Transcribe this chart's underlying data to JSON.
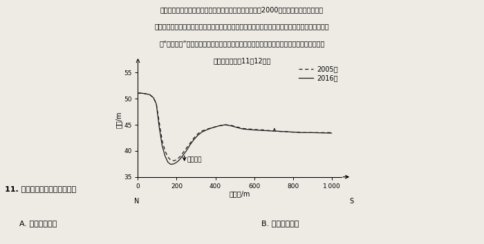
{
  "question11": "11. 图示剖面所在河段最有可能",
  "optionA": "A. 地处弯道顶端",
  "optionB": "B. 两岁岩性坚硬",
  "xlabel": "起点距/m",
  "ylabel": "高程/m",
  "legend_2005": "2005年",
  "legend_2016": "2016年",
  "annotation": "垂向冲深",
  "xlim": [
    0,
    1050
  ],
  "ylim": [
    35,
    57
  ],
  "xticks": [
    0,
    200,
    400,
    600,
    800,
    1000
  ],
  "yticks": [
    35,
    40,
    45,
    50,
    55
  ],
  "bg_color": "#eeebe5",
  "line_color": "#1a1a1a",
  "text_line1": "黄河小浪底水库位于黄河中游最后一段峡谷的出口处。自2000年小浪底水库投入运营以",
  "text_line2": "来，长期保持低含沙水流不泄的冲刷黄河河槽，使下切速率在逐渐减弱，大部河主横槽继续加深，",
  "text_line3": "但“地上悬河”这一不利形态依然存在。下图为小浪底下游黄河干流某处横剖面的高程变化示",
  "text_line4": "意图。据此完成11～12题。",
  "x_2005": [
    0,
    10,
    30,
    60,
    80,
    95,
    110,
    125,
    140,
    155,
    170,
    185,
    200,
    215,
    230,
    250,
    270,
    290,
    310,
    330,
    360,
    390,
    420,
    450,
    480,
    510,
    540,
    570,
    600,
    650,
    700,
    750,
    800,
    850,
    900,
    1000
  ],
  "y_2005": [
    51.0,
    51.1,
    51.0,
    50.8,
    50.2,
    49.0,
    45.5,
    42.0,
    40.0,
    38.8,
    38.2,
    38.1,
    38.3,
    38.8,
    39.5,
    40.5,
    41.5,
    42.5,
    43.3,
    43.8,
    44.2,
    44.5,
    44.8,
    45.0,
    44.9,
    44.6,
    44.3,
    44.2,
    44.1,
    44.0,
    43.8,
    43.7,
    43.6,
    43.5,
    43.5,
    43.5
  ],
  "x_2016": [
    0,
    10,
    30,
    60,
    80,
    95,
    110,
    125,
    140,
    155,
    170,
    185,
    200,
    215,
    230,
    250,
    270,
    290,
    310,
    330,
    360,
    390,
    420,
    450,
    480,
    510,
    540,
    570,
    600,
    650,
    700,
    705,
    710,
    750,
    800,
    850,
    900,
    1000
  ],
  "y_2016": [
    51.0,
    51.1,
    51.0,
    50.8,
    50.2,
    49.0,
    44.5,
    41.0,
    39.0,
    37.8,
    37.4,
    37.5,
    37.8,
    38.3,
    39.0,
    40.0,
    41.2,
    42.2,
    43.0,
    43.6,
    44.1,
    44.5,
    44.8,
    45.0,
    44.8,
    44.5,
    44.2,
    44.1,
    44.0,
    43.9,
    43.8,
    44.3,
    43.8,
    43.7,
    43.6,
    43.5,
    43.5,
    43.4
  ]
}
